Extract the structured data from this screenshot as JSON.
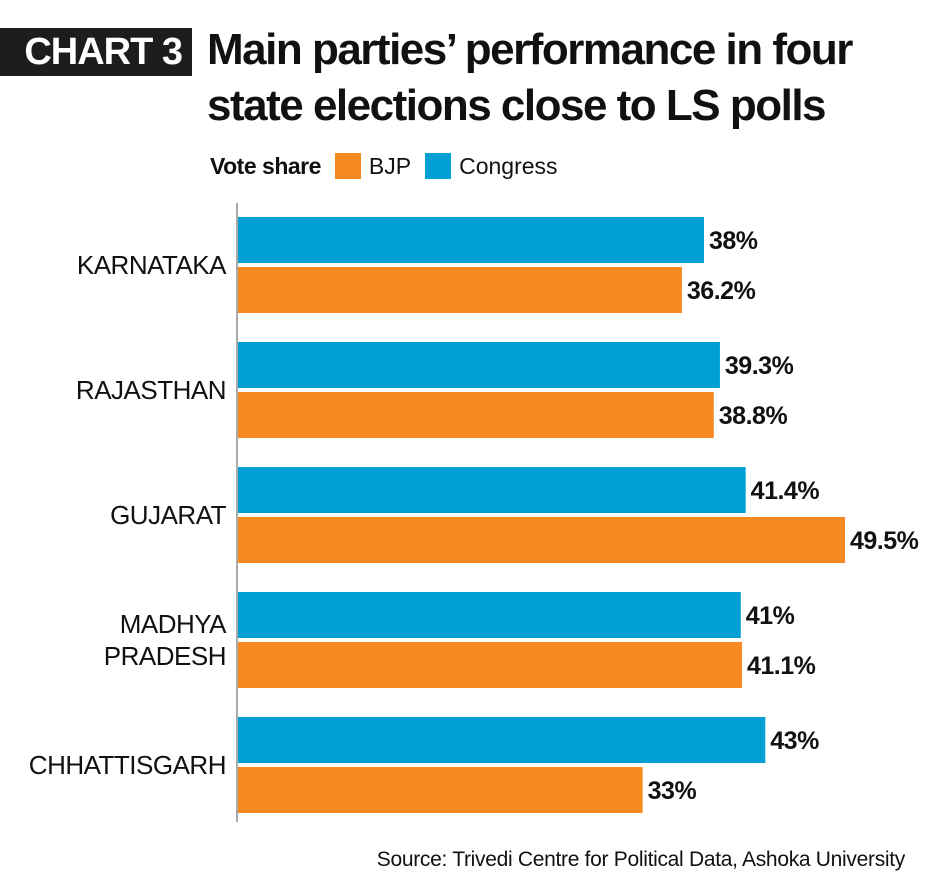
{
  "header": {
    "tag": "CHART 3",
    "title_line1": "Main parties’ performance in four",
    "title_line2": "state elections close to LS polls"
  },
  "legend": {
    "title": "Vote share",
    "items": [
      {
        "label": "BJP",
        "color": "#f6891f"
      },
      {
        "label": "Congress",
        "color": "#009fd4"
      }
    ]
  },
  "source": "Source: Trivedi Centre for Political Data, Ashoka University",
  "chart_data": {
    "type": "bar",
    "orientation": "horizontal",
    "categories": [
      [
        "KARNATAKA"
      ],
      [
        "RAJASTHAN"
      ],
      [
        "GUJARAT"
      ],
      [
        "MADHYA",
        "PRADESH"
      ],
      [
        "CHHATTISGARH"
      ]
    ],
    "series": [
      {
        "name": "Congress",
        "color": "#009fd4",
        "values": [
          38,
          39.3,
          41.4,
          41,
          43
        ],
        "labels": [
          "38%",
          "39.3%",
          "41.4%",
          "41%",
          "43%"
        ]
      },
      {
        "name": "BJP",
        "color": "#f6891f",
        "values": [
          36.2,
          38.8,
          49.5,
          41.1,
          33
        ],
        "labels": [
          "36.2%",
          "38.8%",
          "49.5%",
          "41.1%",
          "33%"
        ]
      }
    ],
    "xlim": [
      0,
      49.5
    ],
    "grid": false,
    "legend_position": "top"
  }
}
